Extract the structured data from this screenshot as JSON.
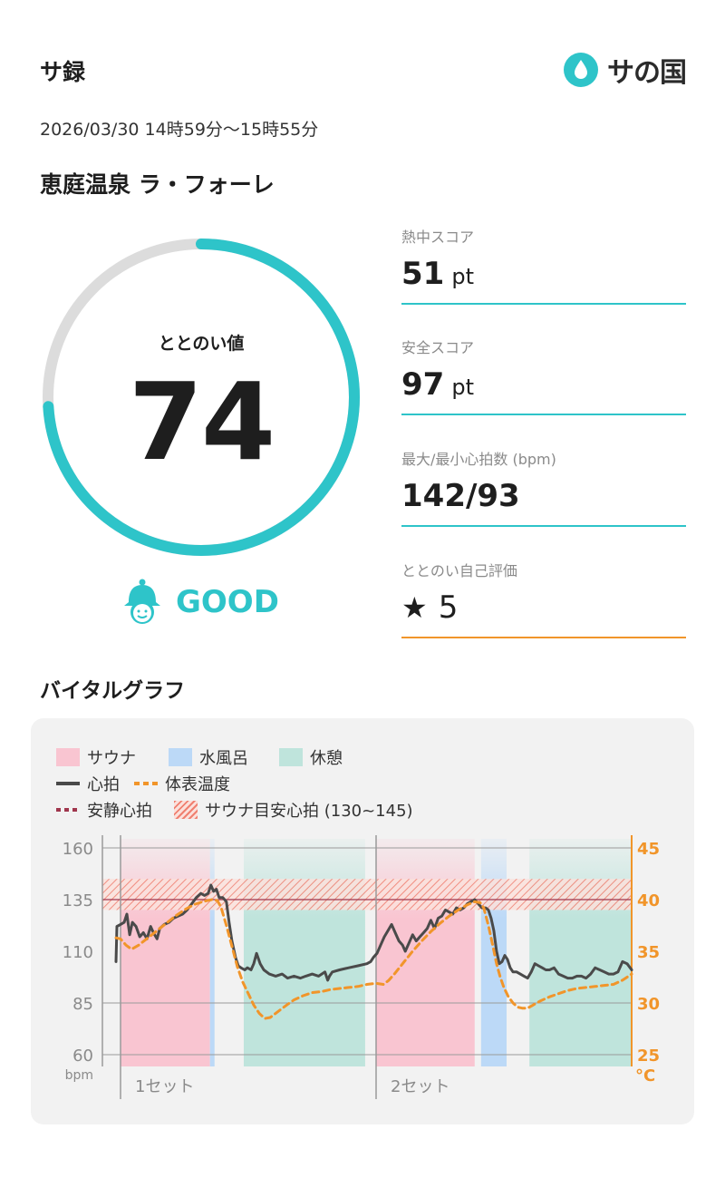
{
  "header": {
    "title": "サ録",
    "logo_text": "サの国",
    "logo_icon": "drop-icon"
  },
  "session": {
    "date": "2026/03/30 14時59分～15時55分",
    "facility": "恵庭温泉 ラ・フォーレ"
  },
  "totonoi": {
    "label": "ととのい値",
    "value": "74",
    "progress": 0.74,
    "rating_icon": "smiley-bell-icon",
    "rating": "GOOD"
  },
  "stats": [
    {
      "label": "熱中スコア",
      "value": "51",
      "unit": "pt"
    },
    {
      "label": "安全スコア",
      "value": "97",
      "unit": "pt"
    },
    {
      "label": "最大/最小心拍数 (bpm)",
      "value": "142/93",
      "unit": ""
    },
    {
      "label": "ととのい自己評価",
      "value": "5",
      "unit": "",
      "icon": "star-icon"
    }
  ],
  "graph": {
    "title": "バイタルグラフ",
    "legend": {
      "sauna": "サウナ",
      "cold_bath": "水風呂",
      "rest": "休憩",
      "heart_rate": "心拍",
      "body_temp": "体表温度",
      "resting_hr": "安静心拍",
      "target_hr": "サウナ目安心拍 (130~145)"
    },
    "colors": {
      "sauna": "#f9c5d1",
      "cold_bath": "#bcd9f7",
      "rest": "#bfe4dc",
      "heart_rate": "#4a4a4a",
      "body_temp": "#f1952a",
      "resting_hr": "#a0364d",
      "target_hr": "#f08070",
      "accent": "#2ec4c9"
    }
  },
  "chart_data": {
    "type": "line",
    "x_unit": "minutes",
    "xlim": [
      0,
      56
    ],
    "y_left": {
      "label": "bpm",
      "ticks": [
        60,
        85,
        110,
        135,
        160
      ],
      "range": [
        60,
        160
      ]
    },
    "y_right": {
      "label": "°C",
      "ticks": [
        25,
        30,
        35,
        40,
        45
      ],
      "range": [
        25,
        45
      ]
    },
    "x_labels": [
      {
        "x": 0,
        "label": "1セット"
      },
      {
        "x": 28,
        "label": "2セット"
      }
    ],
    "phases": [
      {
        "type": "sauna",
        "start": 0,
        "end": 9.8
      },
      {
        "type": "cold_bath",
        "start": 9.8,
        "end": 10.3
      },
      {
        "type": "rest",
        "start": 13.5,
        "end": 26.8
      },
      {
        "type": "sauna",
        "start": 28,
        "end": 38.8
      },
      {
        "type": "cold_bath",
        "start": 39.5,
        "end": 42.3
      },
      {
        "type": "rest",
        "start": 44.8,
        "end": 56
      }
    ],
    "target_band": [
      130,
      145
    ],
    "resting_hr": 135,
    "series": [
      {
        "name": "心拍",
        "axis": "left",
        "points": [
          [
            -0.5,
            105
          ],
          [
            -0.4,
            122
          ],
          [
            0,
            123
          ],
          [
            0.4,
            124
          ],
          [
            0.7,
            128
          ],
          [
            1.0,
            118
          ],
          [
            1.3,
            124
          ],
          [
            1.7,
            122
          ],
          [
            2.1,
            117
          ],
          [
            2.5,
            119
          ],
          [
            2.9,
            116
          ],
          [
            3.3,
            122
          ],
          [
            3.6,
            119
          ],
          [
            4.0,
            116
          ],
          [
            4.3,
            121
          ],
          [
            4.8,
            123
          ],
          [
            5.3,
            124
          ],
          [
            5.8,
            126
          ],
          [
            6.3,
            127
          ],
          [
            6.8,
            128
          ],
          [
            7.3,
            130
          ],
          [
            7.8,
            133
          ],
          [
            8.3,
            136
          ],
          [
            8.8,
            138
          ],
          [
            9.2,
            137
          ],
          [
            9.6,
            138
          ],
          [
            9.9,
            142
          ],
          [
            10.2,
            139
          ],
          [
            10.5,
            140
          ],
          [
            10.8,
            136
          ],
          [
            11.2,
            136
          ],
          [
            11.6,
            134
          ],
          [
            11.9,
            124
          ],
          [
            12.2,
            115
          ],
          [
            12.6,
            107
          ],
          [
            12.9,
            103
          ],
          [
            13.2,
            102
          ],
          [
            13.6,
            101
          ],
          [
            13.9,
            102
          ],
          [
            14.3,
            101
          ],
          [
            14.6,
            104
          ],
          [
            14.9,
            109
          ],
          [
            15.3,
            104
          ],
          [
            15.7,
            101
          ],
          [
            16.3,
            99
          ],
          [
            17.0,
            98
          ],
          [
            17.7,
            99
          ],
          [
            18.3,
            97
          ],
          [
            19.0,
            98
          ],
          [
            19.7,
            97
          ],
          [
            20.3,
            98
          ],
          [
            21.0,
            99
          ],
          [
            21.7,
            98
          ],
          [
            22.4,
            100
          ],
          [
            22.7,
            96
          ],
          [
            22.9,
            98
          ],
          [
            23.2,
            100
          ],
          [
            24.0,
            101
          ],
          [
            25.0,
            102
          ],
          [
            26.0,
            103
          ],
          [
            27.0,
            104
          ],
          [
            27.4,
            105
          ],
          [
            27.7,
            107
          ],
          [
            28.1,
            109
          ],
          [
            28.5,
            113
          ],
          [
            28.9,
            117
          ],
          [
            29.3,
            120
          ],
          [
            29.7,
            123
          ],
          [
            30.1,
            119
          ],
          [
            30.5,
            115
          ],
          [
            30.9,
            113
          ],
          [
            31.2,
            110
          ],
          [
            31.6,
            114
          ],
          [
            32.0,
            118
          ],
          [
            32.4,
            115
          ],
          [
            32.8,
            117
          ],
          [
            33.2,
            119
          ],
          [
            33.6,
            121
          ],
          [
            34.0,
            125
          ],
          [
            34.4,
            121
          ],
          [
            34.8,
            126
          ],
          [
            35.2,
            127
          ],
          [
            35.6,
            130
          ],
          [
            36.0,
            129
          ],
          [
            36.4,
            128
          ],
          [
            36.8,
            131
          ],
          [
            37.2,
            130
          ],
          [
            37.6,
            131
          ],
          [
            38.0,
            133
          ],
          [
            38.4,
            134
          ],
          [
            38.8,
            135
          ],
          [
            39.2,
            133
          ],
          [
            39.6,
            131
          ],
          [
            40.0,
            131
          ],
          [
            40.3,
            130
          ],
          [
            40.6,
            126
          ],
          [
            40.9,
            120
          ],
          [
            41.2,
            110
          ],
          [
            41.5,
            104
          ],
          [
            41.8,
            105
          ],
          [
            42.1,
            108
          ],
          [
            42.4,
            106
          ],
          [
            42.7,
            102
          ],
          [
            43.0,
            100
          ],
          [
            43.4,
            100
          ],
          [
            43.8,
            99
          ],
          [
            44.2,
            98
          ],
          [
            44.6,
            97
          ],
          [
            45.0,
            100
          ],
          [
            45.4,
            104
          ],
          [
            45.8,
            103
          ],
          [
            46.2,
            102
          ],
          [
            46.6,
            101
          ],
          [
            47.0,
            101
          ],
          [
            47.5,
            102
          ],
          [
            48.0,
            99
          ],
          [
            48.5,
            98
          ],
          [
            49.0,
            97
          ],
          [
            49.5,
            97
          ],
          [
            50.0,
            98
          ],
          [
            50.5,
            98
          ],
          [
            51.0,
            97
          ],
          [
            51.5,
            99
          ],
          [
            52.0,
            102
          ],
          [
            52.5,
            101
          ],
          [
            53.0,
            100
          ],
          [
            53.5,
            99
          ],
          [
            54.0,
            99
          ],
          [
            54.5,
            100
          ],
          [
            55.0,
            105
          ],
          [
            55.5,
            104
          ],
          [
            56.0,
            101
          ]
        ]
      },
      {
        "name": "体表温度",
        "axis": "right",
        "points": [
          [
            -0.5,
            36.3
          ],
          [
            0,
            36.2
          ],
          [
            0.6,
            35.6
          ],
          [
            1.2,
            35.2
          ],
          [
            2.0,
            35.6
          ],
          [
            3.0,
            36.3
          ],
          [
            4.0,
            37.0
          ],
          [
            5.0,
            37.7
          ],
          [
            6.0,
            38.4
          ],
          [
            7.0,
            39.0
          ],
          [
            8.0,
            39.5
          ],
          [
            9.0,
            39.8
          ],
          [
            10.0,
            40.0
          ],
          [
            10.6,
            39.9
          ],
          [
            11.0,
            39.3
          ],
          [
            11.6,
            37.5
          ],
          [
            12.2,
            35.5
          ],
          [
            12.8,
            33.5
          ],
          [
            13.4,
            32.0
          ],
          [
            14.0,
            30.9
          ],
          [
            14.6,
            29.8
          ],
          [
            15.2,
            29.0
          ],
          [
            15.8,
            28.5
          ],
          [
            16.4,
            28.6
          ],
          [
            17.0,
            29.0
          ],
          [
            17.6,
            29.4
          ],
          [
            18.2,
            29.8
          ],
          [
            19.0,
            30.3
          ],
          [
            20.0,
            30.7
          ],
          [
            21.0,
            31.0
          ],
          [
            22.0,
            31.1
          ],
          [
            23.0,
            31.3
          ],
          [
            24.0,
            31.4
          ],
          [
            25.0,
            31.5
          ],
          [
            26.0,
            31.6
          ],
          [
            27.0,
            31.8
          ],
          [
            28.0,
            31.9
          ],
          [
            28.8,
            31.8
          ],
          [
            29.4,
            32.2
          ],
          [
            30.0,
            32.8
          ],
          [
            31.0,
            33.9
          ],
          [
            32.0,
            35.0
          ],
          [
            33.0,
            36.0
          ],
          [
            34.0,
            36.9
          ],
          [
            35.0,
            37.7
          ],
          [
            36.0,
            38.4
          ],
          [
            37.0,
            39.0
          ],
          [
            38.0,
            39.5
          ],
          [
            38.8,
            39.8
          ],
          [
            39.4,
            39.7
          ],
          [
            39.8,
            39.2
          ],
          [
            40.3,
            37.5
          ],
          [
            40.8,
            35.5
          ],
          [
            41.2,
            33.8
          ],
          [
            41.6,
            32.5
          ],
          [
            42.0,
            31.5
          ],
          [
            42.5,
            30.6
          ],
          [
            43.0,
            30.0
          ],
          [
            43.5,
            29.6
          ],
          [
            44.0,
            29.5
          ],
          [
            44.6,
            29.5
          ],
          [
            45.2,
            29.8
          ],
          [
            46.0,
            30.2
          ],
          [
            47.0,
            30.6
          ],
          [
            48.0,
            30.9
          ],
          [
            49.0,
            31.2
          ],
          [
            50.0,
            31.4
          ],
          [
            51.0,
            31.5
          ],
          [
            52.0,
            31.6
          ],
          [
            53.0,
            31.7
          ],
          [
            54.0,
            31.8
          ],
          [
            55.0,
            32.2
          ],
          [
            56.0,
            32.8
          ]
        ]
      }
    ]
  }
}
